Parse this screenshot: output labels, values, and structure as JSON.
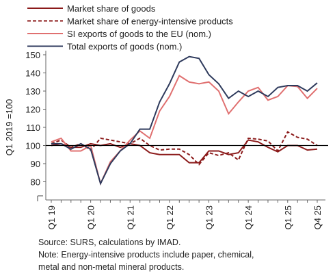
{
  "chart_data": {
    "type": "line",
    "y_label": "Q1 2019 =100",
    "categories": [
      "Q1 19",
      null,
      null,
      null,
      "Q1 20",
      null,
      null,
      null,
      "Q1 21",
      null,
      null,
      null,
      "Q1 22",
      null,
      null,
      null,
      "Q1 23",
      null,
      null,
      null,
      "Q1 24",
      null,
      null,
      null,
      "Q1 25",
      null,
      null,
      "Q4 25"
    ],
    "series": [
      {
        "name": "Market share of goods",
        "color": "#8b1a1a",
        "dash": false,
        "values": [
          100,
          101,
          99,
          99,
          101,
          100,
          101,
          99,
          101,
          100,
          96,
          95,
          95,
          95,
          90.5,
          90.5,
          97,
          97,
          95,
          96,
          103,
          102,
          99,
          96.5,
          100,
          100,
          97.5,
          98
        ]
      },
      {
        "name": "Market share of energy-intensive products",
        "color": "#8b1a1a",
        "dash": true,
        "values": [
          101,
          103,
          99,
          101,
          97.5,
          104,
          103,
          102,
          101,
          104,
          100,
          97.5,
          98,
          98,
          95,
          89.5,
          96,
          94.5,
          96,
          92,
          104,
          103.5,
          102.5,
          97,
          107.5,
          104.5,
          103.5,
          100
        ]
      },
      {
        "name": "SI exports of goods to the EU (nom.)",
        "color": "#e07070",
        "dash": false,
        "values": [
          102,
          104,
          97,
          97,
          100,
          79,
          91,
          97,
          103,
          108,
          104,
          119,
          127,
          138.5,
          135,
          134,
          135,
          130,
          117.5,
          124,
          130,
          132,
          125,
          127,
          133,
          132.5,
          126,
          131.5
        ]
      },
      {
        "name": "Total exports of goods (nom.)",
        "color": "#2e3a5c",
        "dash": false,
        "values": [
          101,
          101,
          98,
          101,
          98,
          79,
          90,
          97,
          101,
          109,
          109,
          124,
          134,
          146,
          149,
          148,
          139,
          134,
          126,
          130,
          127,
          130,
          127,
          132,
          133,
          133,
          130,
          134.5
        ]
      }
    ],
    "ylim": [
      70,
      150
    ],
    "yticks": [
      80,
      90,
      100,
      110,
      120,
      130,
      140,
      150
    ],
    "reference_line": 100,
    "notes": [
      "Source: SURS, calculations by IMAD.",
      "Note: Energy-intensive products include paper, chemical,",
      "metal and non-metal mineral products."
    ]
  }
}
